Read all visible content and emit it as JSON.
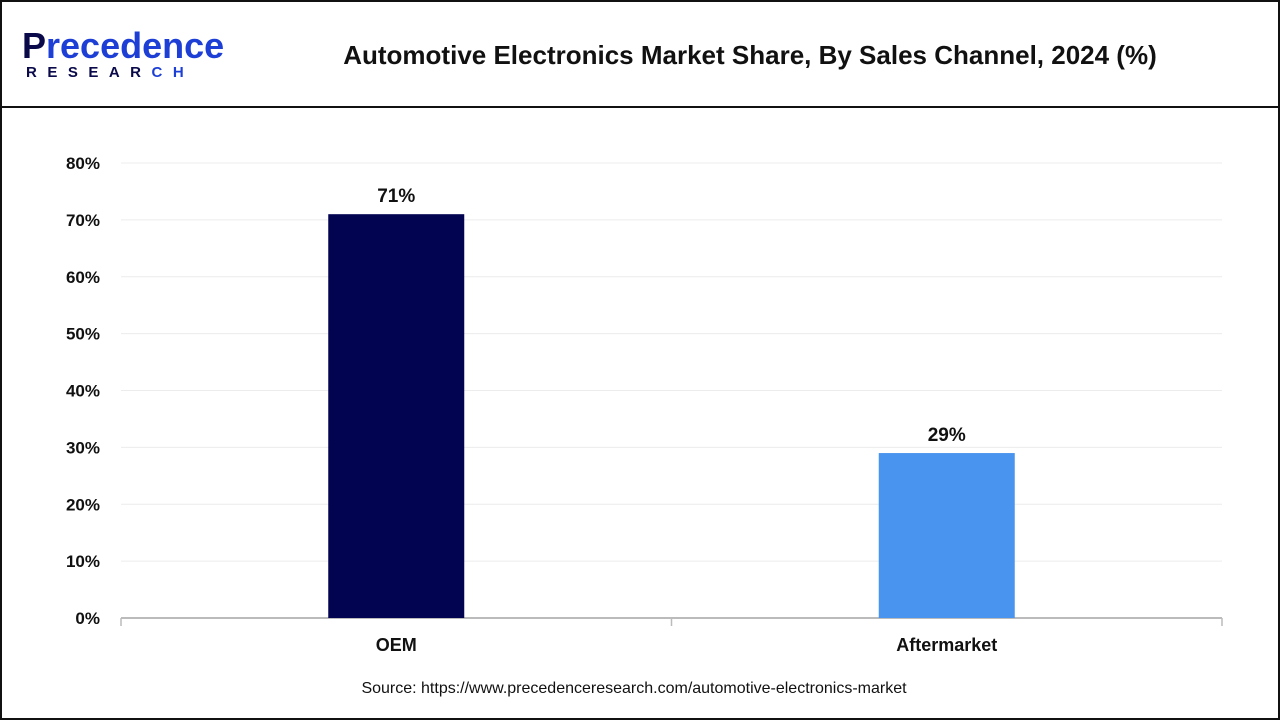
{
  "logo": {
    "line1_first": "P",
    "line1_rest": "recedence",
    "line2_main": "RESEAR",
    "line2_accent": "CH"
  },
  "title": "Automotive Electronics Market Share, By Sales Channel, 2024 (%)",
  "source": "Source: https://www.precedenceresearch.com/automotive-electronics-market",
  "colors": {
    "OEM": "#020452",
    "Aftermarket": "#4894ee"
  },
  "chart_data": {
    "type": "bar",
    "title": "Automotive Electronics Market Share, By Sales Channel, 2024 (%)",
    "categories": [
      "OEM",
      "Aftermarket"
    ],
    "values": [
      71,
      29
    ],
    "data_labels": [
      "71%",
      "29%"
    ],
    "xlabel": "",
    "ylabel": "",
    "ylim": [
      0,
      80
    ],
    "yticks": [
      "0%",
      "10%",
      "20%",
      "30%",
      "40%",
      "50%",
      "60%",
      "70%",
      "80%"
    ],
    "grid": true,
    "legend": "none"
  }
}
